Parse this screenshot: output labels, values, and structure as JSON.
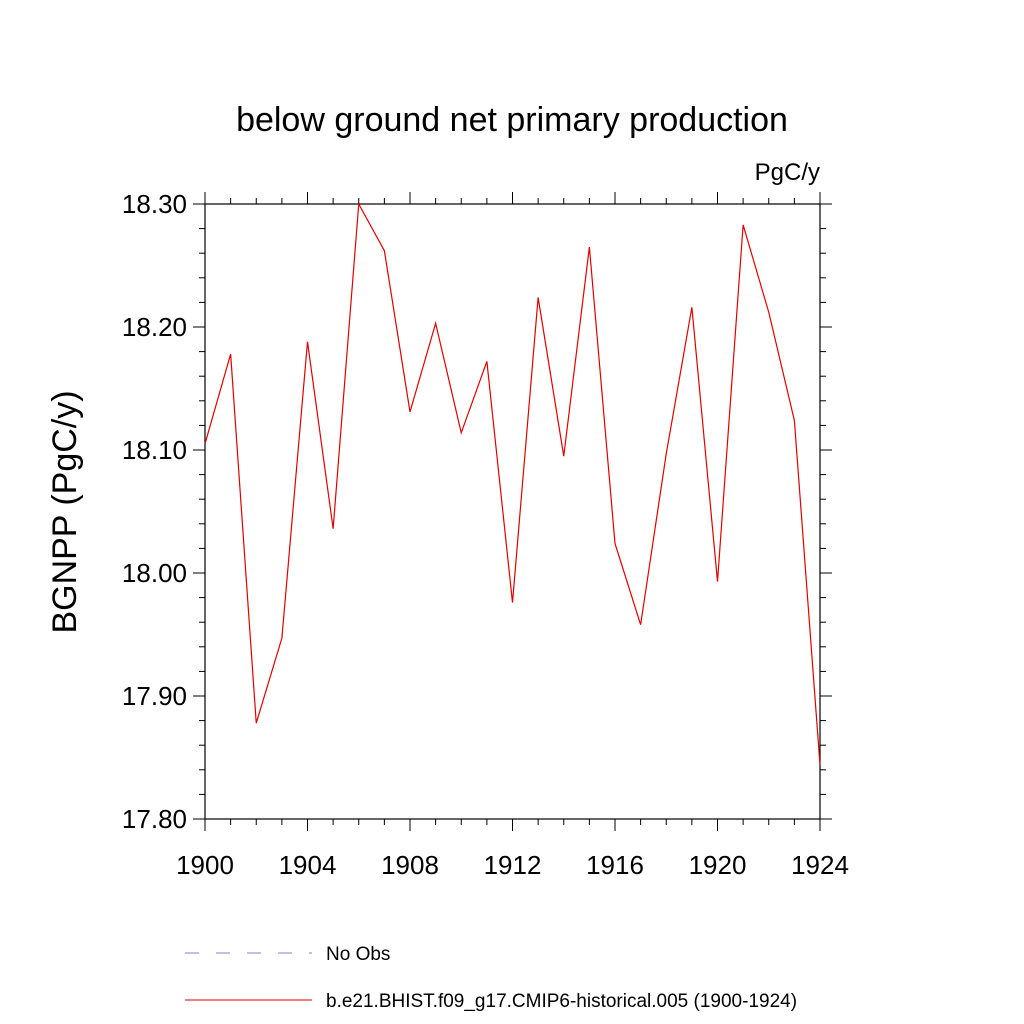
{
  "chart_data": {
    "type": "line",
    "title": "below ground net primary production",
    "units_label": "PgC/y",
    "xlabel": "",
    "ylabel": "BGNPP  (PgC/y)",
    "xlim": [
      1900,
      1924
    ],
    "ylim": [
      17.8,
      18.3
    ],
    "x_major_ticks": [
      1900,
      1904,
      1908,
      1912,
      1916,
      1920,
      1924
    ],
    "x_tick_labels": [
      "1900",
      "1904",
      "1908",
      "1912",
      "1916",
      "1920",
      "1924"
    ],
    "y_major_ticks": [
      17.8,
      17.9,
      18.0,
      18.1,
      18.2,
      18.3
    ],
    "y_tick_labels": [
      "17.80",
      "17.90",
      "18.00",
      "18.10",
      "18.20",
      "18.30"
    ],
    "grid": false,
    "legend_position": "bottom",
    "series": [
      {
        "name": "No Obs",
        "color": "#8080c0",
        "dash": "dashed",
        "x": [],
        "values": []
      },
      {
        "name": "b.e21.BHIST.f09_g17.CMIP6-historical.005 (1900-1924)",
        "color": "#e00000",
        "dash": "solid",
        "x": [
          1900,
          1901,
          1902,
          1903,
          1904,
          1905,
          1906,
          1907,
          1908,
          1909,
          1910,
          1911,
          1912,
          1913,
          1914,
          1915,
          1916,
          1917,
          1918,
          1919,
          1920,
          1921,
          1922,
          1923,
          1924
        ],
        "values": [
          18.105,
          18.178,
          17.878,
          17.947,
          18.188,
          18.036,
          18.3,
          18.262,
          18.131,
          18.203,
          18.114,
          18.172,
          17.976,
          18.224,
          18.095,
          18.265,
          18.024,
          17.958,
          18.097,
          18.216,
          17.993,
          18.283,
          18.212,
          18.124,
          17.844
        ]
      }
    ]
  }
}
